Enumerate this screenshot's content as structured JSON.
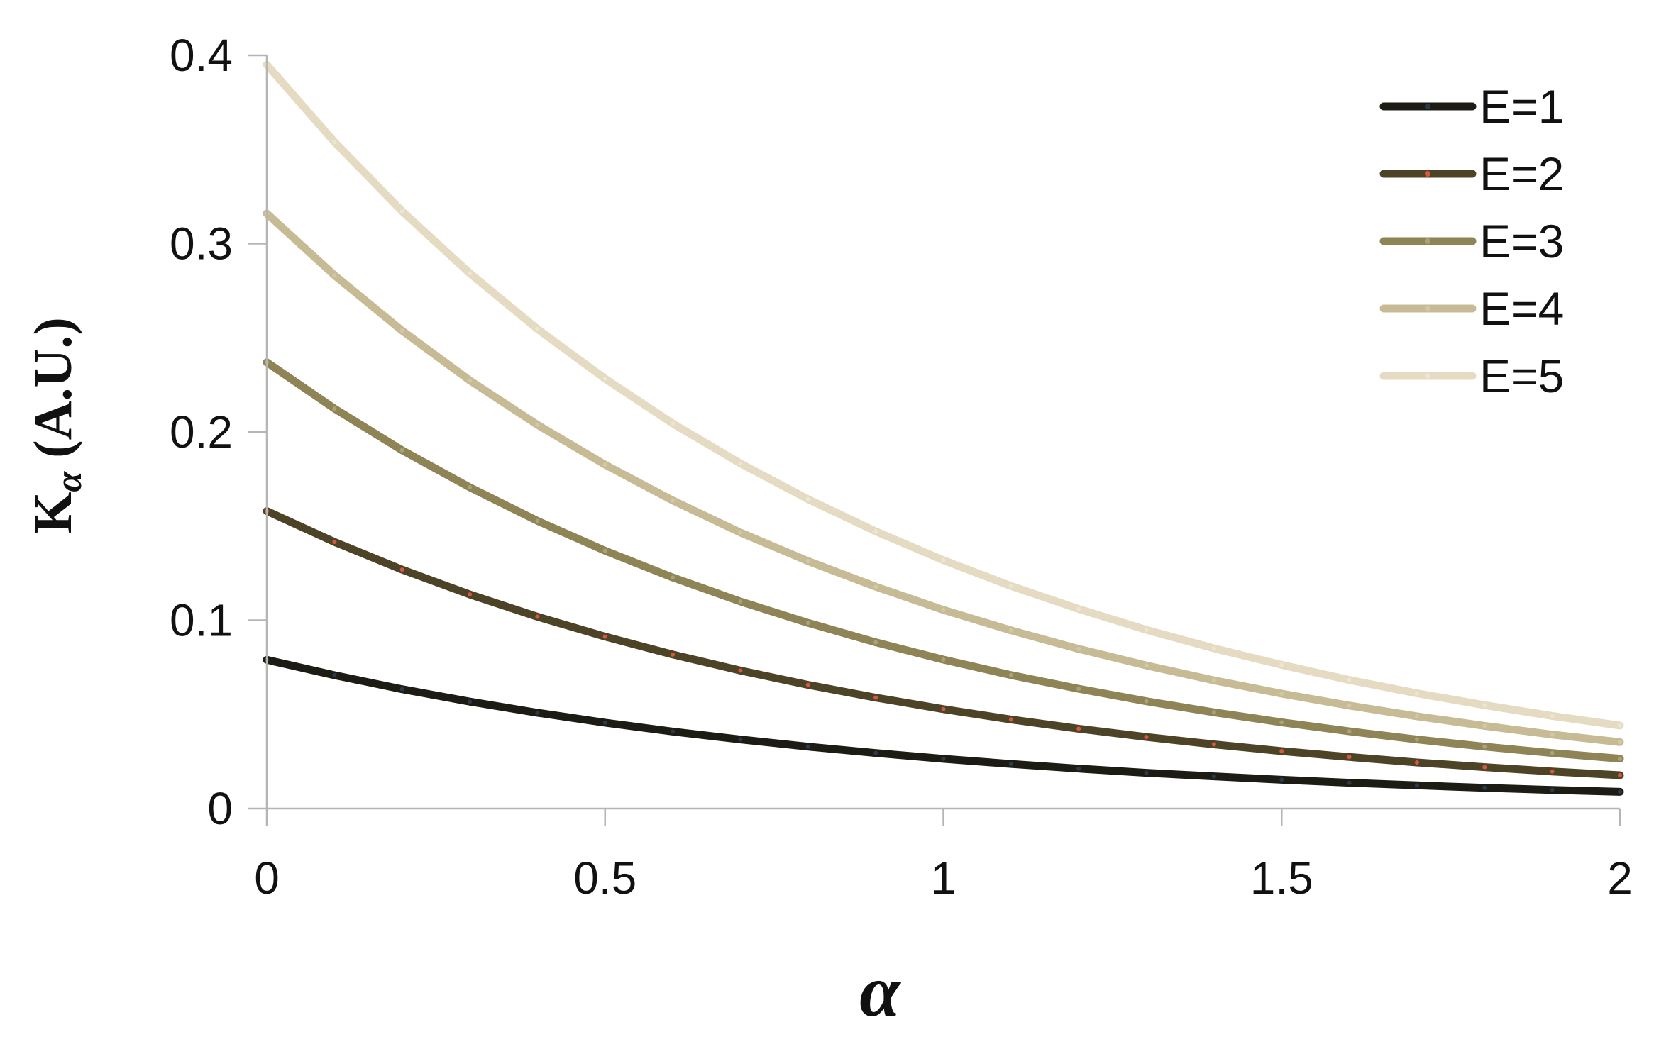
{
  "chart_data": {
    "type": "line",
    "title": "",
    "xlabel": "α",
    "ylabel": "K",
    "ylabel_subscript": "α",
    "ylabel_unit": " (A.U.)",
    "xlim": [
      0,
      2
    ],
    "ylim": [
      0,
      0.4
    ],
    "xticks": [
      0,
      0.5,
      1,
      1.5,
      2
    ],
    "yticks": [
      0,
      0.1,
      0.2,
      0.3,
      0.4
    ],
    "xtick_labels": [
      "0",
      "0.5",
      "1",
      "1.5",
      "2"
    ],
    "ytick_labels": [
      "0",
      "0.1",
      "0.2",
      "0.3",
      "0.4"
    ],
    "grid": false,
    "legend_position": "top-right",
    "x": [
      0,
      0.1,
      0.2,
      0.3,
      0.4,
      0.5,
      0.6,
      0.7,
      0.8,
      0.9,
      1.0,
      1.1,
      1.2,
      1.3,
      1.4,
      1.5,
      1.6,
      1.7,
      1.8,
      1.9,
      2.0
    ],
    "series": [
      {
        "name": "E=1",
        "color": "#1c1c14",
        "marker_color": "#2b3a4a",
        "values": [
          0.079,
          0.0708,
          0.0634,
          0.0568,
          0.0509,
          0.0456,
          0.0409,
          0.0367,
          0.0329,
          0.0295,
          0.0264,
          0.0237,
          0.0212,
          0.019,
          0.0171,
          0.0153,
          0.0137,
          0.0123,
          0.011,
          0.0099,
          0.0089
        ]
      },
      {
        "name": "E=2",
        "color": "#4d4327",
        "marker_color": "#d9573e",
        "values": [
          0.158,
          0.1416,
          0.1269,
          0.1137,
          0.1019,
          0.0913,
          0.0818,
          0.0733,
          0.0657,
          0.0589,
          0.0528,
          0.0473,
          0.0424,
          0.038,
          0.0341,
          0.0305,
          0.0274,
          0.0245,
          0.022,
          0.0197,
          0.0177
        ]
      },
      {
        "name": "E=3",
        "color": "#8e8456",
        "marker_color": "#a9a27a",
        "values": [
          0.237,
          0.2124,
          0.1903,
          0.1706,
          0.1528,
          0.1369,
          0.1227,
          0.11,
          0.0986,
          0.0883,
          0.0791,
          0.0709,
          0.0636,
          0.057,
          0.0511,
          0.0458,
          0.041,
          0.0367,
          0.0329,
          0.0295,
          0.0265
        ]
      },
      {
        "name": "E=4",
        "color": "#c7bb95",
        "marker_color": "#d2c8a6",
        "values": [
          0.316,
          0.2832,
          0.2538,
          0.2274,
          0.2038,
          0.1826,
          0.1636,
          0.1466,
          0.1314,
          0.1178,
          0.1055,
          0.0946,
          0.0848,
          0.076,
          0.0681,
          0.061,
          0.0547,
          0.049,
          0.0439,
          0.0393,
          0.0353
        ]
      },
      {
        "name": "E=5",
        "color": "#e4dbc2",
        "marker_color": "#ece5d0",
        "values": [
          0.395,
          0.354,
          0.3172,
          0.2843,
          0.2547,
          0.2283,
          0.2045,
          0.1833,
          0.1643,
          0.1472,
          0.1319,
          0.1182,
          0.106,
          0.0949,
          0.0851,
          0.0763,
          0.0683,
          0.0612,
          0.0549,
          0.0492,
          0.0441
        ]
      }
    ]
  }
}
